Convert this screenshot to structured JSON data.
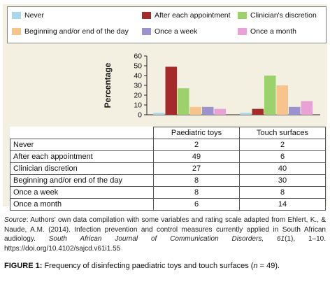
{
  "chart_data": {
    "type": "bar",
    "ylabel": "Percentage",
    "ylim": [
      0,
      60
    ],
    "yticks": [
      0,
      10,
      20,
      30,
      40,
      50,
      60
    ],
    "grid": false,
    "legend_position": "top",
    "categories": [
      "Paediatric toys",
      "Touch surfaces"
    ],
    "series": [
      {
        "name": "Never",
        "color": "#a8d8ea",
        "values": [
          2,
          2
        ]
      },
      {
        "name": "After each appointment",
        "color": "#a52a2a",
        "values": [
          49,
          6
        ]
      },
      {
        "name": "Clinician's discretion",
        "color": "#9bd26b",
        "values": [
          27,
          40
        ]
      },
      {
        "name": "Beginning and/or end of the day",
        "color": "#f8c48c",
        "values": [
          8,
          30
        ]
      },
      {
        "name": "Once a week",
        "color": "#9a93cf",
        "values": [
          8,
          8
        ]
      },
      {
        "name": "Once a month",
        "color": "#e8a2d6",
        "values": [
          6,
          14
        ]
      }
    ],
    "table": {
      "row_labels": [
        "Never",
        "After each appointment",
        "Clinician discretion",
        "Beginning and/or end of the day",
        "Once a week",
        "Once a month"
      ]
    }
  },
  "source": {
    "lead": "Source",
    "text_1": ": Authors' own data compilation with some variables and rating scale adapted from Ehlert, K., & Naude, A.M. (2014). Infection prevention and control measures currently applied in South African audiology. ",
    "journal": "South African Journal of Communication Disorders, 61",
    "text_2": "(1), 1–10. https://doi.org/10.4102/sajcd.v61i1.55"
  },
  "caption": {
    "label": "FIGURE 1:",
    "text": " Frequency of disinfecting paediatric toys and touch surfaces (",
    "n_symbol": "n",
    "n_text": " = 49)."
  }
}
